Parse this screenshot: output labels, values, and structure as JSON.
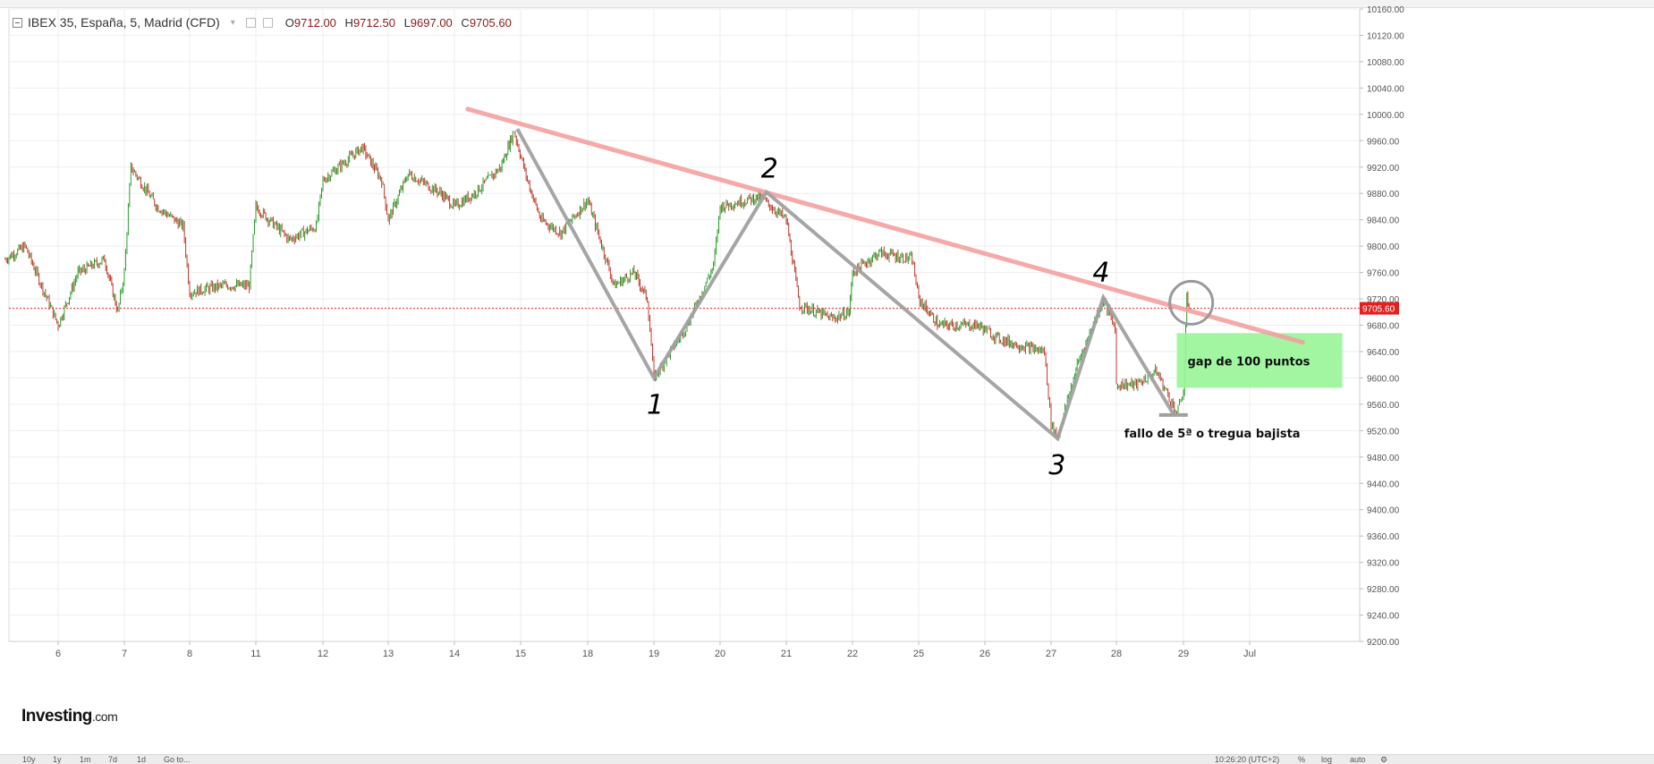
{
  "legend": {
    "symbol": "IBEX 35, España, 5, Madrid (CFD)",
    "open_label": "O",
    "open": "9712.00",
    "high_label": "H",
    "high": "9712.50",
    "low_label": "L",
    "low": "9697.00",
    "close_label": "C",
    "close": "9705.60"
  },
  "logo": {
    "brand": "Investing",
    "suffix": ".com"
  },
  "bottombar": {
    "buttons": [
      "10y",
      "1y",
      "1m",
      "7d",
      "1d",
      "Go to..."
    ],
    "time": "10:26:20 (UTC+2)",
    "options": [
      "%",
      "log",
      "auto"
    ]
  },
  "chart_data": {
    "type": "candlestick",
    "title": "IBEX 35, España, 5, Madrid (CFD)",
    "xlabel": "",
    "ylabel": "",
    "ylim": [
      9200,
      10160
    ],
    "y_ticks": [
      "9200.00",
      "9240.00",
      "9280.00",
      "9320.00",
      "9360.00",
      "9400.00",
      "9440.00",
      "9480.00",
      "9520.00",
      "9560.00",
      "9600.00",
      "9640.00",
      "9680.00",
      "9720.00",
      "9760.00",
      "9800.00",
      "9840.00",
      "9880.00",
      "9920.00",
      "9960.00",
      "10000.00",
      "10040.00",
      "10080.00",
      "10120.00",
      "10160.00"
    ],
    "x_ticks": [
      "6",
      "7",
      "8",
      "11",
      "12",
      "13",
      "14",
      "15",
      "18",
      "19",
      "20",
      "21",
      "22",
      "25",
      "26",
      "27",
      "28",
      "29",
      "Jul"
    ],
    "last_price": "9705.60",
    "price_path": [
      {
        "x": "5.2",
        "y": 9780
      },
      {
        "x": "5.5",
        "y": 9800
      },
      {
        "x": "6",
        "y": 9680
      },
      {
        "x": "6.3",
        "y": 9760
      },
      {
        "x": "6.7",
        "y": 9780
      },
      {
        "x": "6.9",
        "y": 9700
      },
      {
        "x": "7",
        "y": 9760
      },
      {
        "x": "7.1",
        "y": 9920
      },
      {
        "x": "7.5",
        "y": 9860
      },
      {
        "x": "7.9",
        "y": 9830
      },
      {
        "x": "8",
        "y": 9730
      },
      {
        "x": "8.5",
        "y": 9740
      },
      {
        "x": "8.9",
        "y": 9740
      },
      {
        "x": "11",
        "y": 9860
      },
      {
        "x": "11.5",
        "y": 9810
      },
      {
        "x": "11.9",
        "y": 9830
      },
      {
        "x": "12",
        "y": 9900
      },
      {
        "x": "12.6",
        "y": 9950
      },
      {
        "x": "12.9",
        "y": 9900
      },
      {
        "x": "13",
        "y": 9840
      },
      {
        "x": "13.3",
        "y": 9910
      },
      {
        "x": "13.8",
        "y": 9880
      },
      {
        "x": "14",
        "y": 9860
      },
      {
        "x": "14.3",
        "y": 9880
      },
      {
        "x": "14.7",
        "y": 9920
      },
      {
        "x": "14.9",
        "y": 9975
      },
      {
        "x": "15.1",
        "y": 9900
      },
      {
        "x": "15.3",
        "y": 9840
      },
      {
        "x": "15.6",
        "y": 9820
      },
      {
        "x": "18",
        "y": 9870
      },
      {
        "x": "18.4",
        "y": 9740
      },
      {
        "x": "18.7",
        "y": 9760
      },
      {
        "x": "18.9",
        "y": 9720
      },
      {
        "x": "19",
        "y": 9600
      },
      {
        "x": "19.5",
        "y": 9680
      },
      {
        "x": "19.9",
        "y": 9770
      },
      {
        "x": "20",
        "y": 9860
      },
      {
        "x": "20.6",
        "y": 9875
      },
      {
        "x": "21",
        "y": 9840
      },
      {
        "x": "21.2",
        "y": 9710
      },
      {
        "x": "21.7",
        "y": 9690
      },
      {
        "x": "21.95",
        "y": 9700
      },
      {
        "x": "22",
        "y": 9760
      },
      {
        "x": "22.4",
        "y": 9790
      },
      {
        "x": "22.9",
        "y": 9780
      },
      {
        "x": "25",
        "y": 9720
      },
      {
        "x": "25.3",
        "y": 9680
      },
      {
        "x": "25.9",
        "y": 9680
      },
      {
        "x": "26.2",
        "y": 9660
      },
      {
        "x": "26.5",
        "y": 9650
      },
      {
        "x": "26.9",
        "y": 9640
      },
      {
        "x": "27",
        "y": 9530
      },
      {
        "x": "27.1",
        "y": 9510
      },
      {
        "x": "27.4",
        "y": 9620
      },
      {
        "x": "27.8",
        "y": 9720
      },
      {
        "x": "28",
        "y": 9670
      },
      {
        "x": "28",
        "y": 9590
      },
      {
        "x": "28.3",
        "y": 9590
      },
      {
        "x": "28.6",
        "y": 9610
      },
      {
        "x": "28.9",
        "y": 9545
      },
      {
        "x": "29",
        "y": 9580
      },
      {
        "x": "29.05",
        "y": 9720
      },
      {
        "x": "29.1",
        "y": 9706
      }
    ],
    "annotations": {
      "trendline": [
        {
          "x": "14.2",
          "y": 10008
        },
        {
          "x": "30.8",
          "y": 9654
        }
      ],
      "wave_path": [
        {
          "x": "14.95",
          "y": 9978
        },
        {
          "x": "19",
          "y": 9600
        },
        {
          "x": "20.7",
          "y": 9882
        },
        {
          "x": "27.1",
          "y": 9508
        },
        {
          "x": "27.8",
          "y": 9722
        },
        {
          "x": "28.85",
          "y": 9545
        }
      ],
      "wave_labels": [
        "1",
        "2",
        "3",
        "4"
      ],
      "gap_box": {
        "x_from": "28.9",
        "x_to": "31.4",
        "y_from": 9585,
        "y_to": 9668,
        "label": "gap de 100 puntos"
      },
      "failure_text": "fallo de 5ª o tregua bajista",
      "circle_at": {
        "x": "29.05",
        "y": 9710
      }
    },
    "colors": {
      "up": "#2a9d2a",
      "down": "#c0392b",
      "trendline": "#f4a0a0",
      "wave": "#a0a0a0",
      "gap": "#98f598",
      "price_line": "#e22020"
    }
  }
}
